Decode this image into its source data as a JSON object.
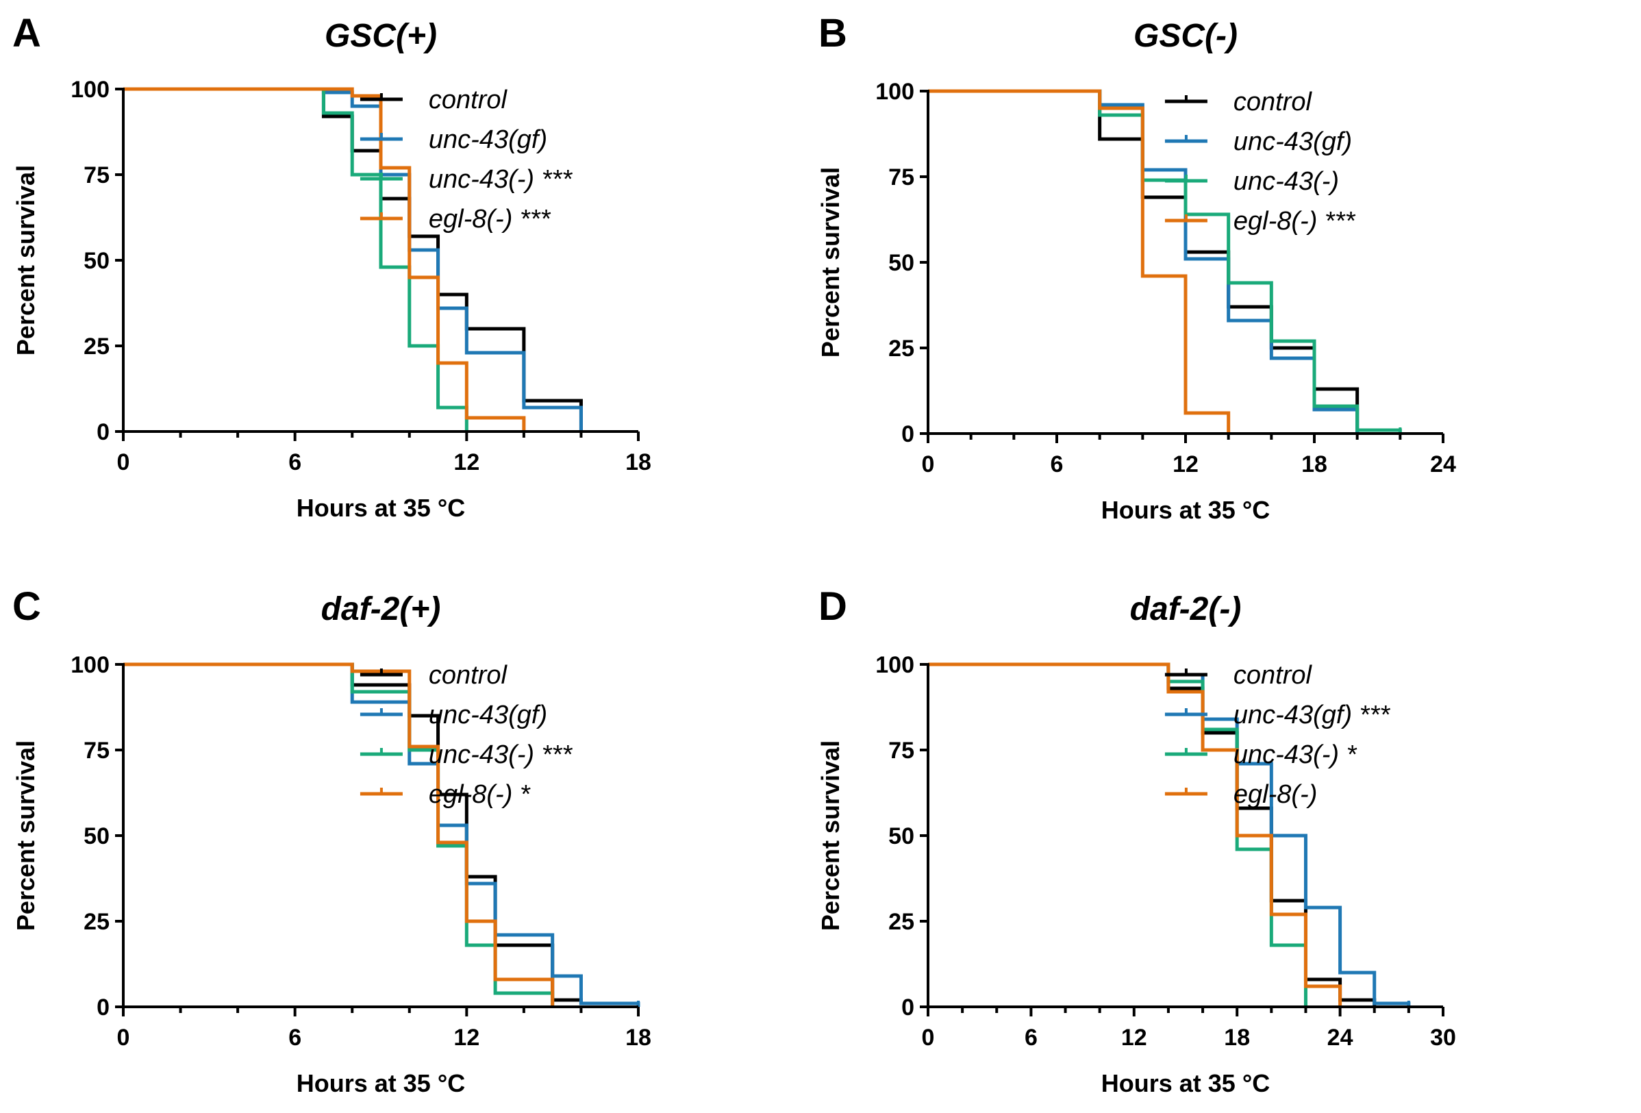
{
  "colors": {
    "control": "#000000",
    "unc-43(gf)": "#1f78b4",
    "unc-43(-)": "#1aaa7a",
    "egl-8(-)": "#e0700e"
  },
  "chart_data": [
    {
      "panel": "A",
      "title": "GSC(+)",
      "type": "line",
      "xlabel": "Hours at 35 °C",
      "ylabel": "Percent survival",
      "xlim": [
        0,
        18
      ],
      "ylim": [
        0,
        100
      ],
      "xticks": [
        0,
        6,
        12,
        18
      ],
      "yticks": [
        0,
        25,
        50,
        75,
        100
      ],
      "legend_position": "top-right",
      "series": [
        {
          "key": "control",
          "name": "control",
          "suffix": "",
          "x": [
            0,
            7,
            8,
            9,
            10,
            11,
            12,
            14,
            16
          ],
          "y": [
            100,
            92,
            82,
            68,
            57,
            40,
            30,
            9,
            0
          ]
        },
        {
          "key": "unc-43(gf)",
          "name": "unc-43(gf)",
          "suffix": "",
          "x": [
            0,
            7,
            8,
            9,
            10,
            11,
            12,
            14,
            16
          ],
          "y": [
            100,
            99,
            95,
            75,
            53,
            36,
            23,
            7,
            0
          ]
        },
        {
          "key": "unc-43(-)",
          "name": "unc-43(-)",
          "suffix": " ***",
          "x": [
            0,
            7,
            8,
            9,
            10,
            11,
            12
          ],
          "y": [
            100,
            93,
            75,
            48,
            25,
            7,
            0
          ]
        },
        {
          "key": "egl-8(-)",
          "name": "egl-8(-)",
          "suffix": " ***",
          "x": [
            0,
            8,
            9,
            10,
            11,
            12,
            14
          ],
          "y": [
            100,
            98,
            77,
            45,
            20,
            4,
            0
          ]
        }
      ]
    },
    {
      "panel": "B",
      "title": "GSC(-)",
      "type": "line",
      "xlabel": "Hours at 35 °C",
      "ylabel": "Percent survival",
      "xlim": [
        0,
        24
      ],
      "ylim": [
        0,
        100
      ],
      "xticks": [
        0,
        6,
        12,
        18,
        24
      ],
      "yticks": [
        0,
        25,
        50,
        75,
        100
      ],
      "legend_position": "top-right",
      "series": [
        {
          "key": "control",
          "name": "control",
          "suffix": "",
          "x": [
            0,
            8,
            10,
            12,
            14,
            16,
            18,
            20
          ],
          "y": [
            100,
            86,
            69,
            53,
            37,
            25,
            13,
            0
          ]
        },
        {
          "key": "unc-43(gf)",
          "name": "unc-43(gf)",
          "suffix": "",
          "x": [
            0,
            8,
            10,
            12,
            14,
            16,
            18,
            20
          ],
          "y": [
            100,
            96,
            77,
            51,
            33,
            22,
            7,
            0
          ]
        },
        {
          "key": "unc-43(-)",
          "name": "unc-43(-)",
          "suffix": "",
          "x": [
            0,
            8,
            10,
            12,
            14,
            16,
            18,
            20,
            22
          ],
          "y": [
            100,
            93,
            74,
            64,
            44,
            27,
            8,
            1,
            0
          ]
        },
        {
          "key": "egl-8(-)",
          "name": "egl-8(-)",
          "suffix": " ***",
          "x": [
            0,
            8,
            10,
            12,
            14
          ],
          "y": [
            100,
            95,
            46,
            6,
            0
          ]
        }
      ]
    },
    {
      "panel": "C",
      "title": "daf-2(+)",
      "type": "line",
      "xlabel": "Hours at 35 °C",
      "ylabel": "Percent survival",
      "xlim": [
        0,
        18
      ],
      "ylim": [
        0,
        100
      ],
      "xticks": [
        0,
        6,
        12,
        18
      ],
      "yticks": [
        0,
        25,
        50,
        75,
        100
      ],
      "legend_position": "top-right",
      "series": [
        {
          "key": "control",
          "name": "control",
          "suffix": "",
          "x": [
            0,
            8,
            10,
            11,
            12,
            13,
            15,
            16,
            18
          ],
          "y": [
            100,
            94,
            85,
            62,
            38,
            18,
            2,
            1,
            0
          ]
        },
        {
          "key": "unc-43(gf)",
          "name": "unc-43(gf)",
          "suffix": "",
          "x": [
            0,
            8,
            10,
            11,
            12,
            13,
            15,
            16,
            18
          ],
          "y": [
            100,
            89,
            71,
            53,
            36,
            21,
            9,
            1,
            0
          ]
        },
        {
          "key": "unc-43(-)",
          "name": "unc-43(-)",
          "suffix": " ***",
          "x": [
            0,
            8,
            10,
            11,
            12,
            13,
            15
          ],
          "y": [
            100,
            92,
            75,
            47,
            18,
            4,
            0
          ]
        },
        {
          "key": "egl-8(-)",
          "name": "egl-8(-)",
          "suffix": " *",
          "x": [
            0,
            8,
            10,
            11,
            12,
            13,
            15
          ],
          "y": [
            100,
            98,
            76,
            48,
            25,
            8,
            0
          ]
        }
      ]
    },
    {
      "panel": "D",
      "title": "daf-2(-)",
      "type": "line",
      "xlabel": "Hours at 35 °C",
      "ylabel": "Percent survival",
      "xlim": [
        0,
        30
      ],
      "ylim": [
        0,
        100
      ],
      "xticks": [
        0,
        6,
        12,
        18,
        24,
        30
      ],
      "yticks": [
        0,
        25,
        50,
        75,
        100
      ],
      "legend_position": "top-right",
      "series": [
        {
          "key": "control",
          "name": "control",
          "suffix": "",
          "x": [
            0,
            14,
            16,
            18,
            20,
            22,
            24,
            26
          ],
          "y": [
            100,
            93,
            80,
            58,
            31,
            8,
            2,
            0
          ]
        },
        {
          "key": "unc-43(gf)",
          "name": "unc-43(gf)",
          "suffix": " ***",
          "x": [
            0,
            14,
            16,
            18,
            20,
            22,
            24,
            26,
            28
          ],
          "y": [
            100,
            97,
            84,
            71,
            50,
            29,
            10,
            1,
            0
          ]
        },
        {
          "key": "unc-43(-)",
          "name": "unc-43(-)",
          "suffix": " *",
          "x": [
            0,
            14,
            16,
            18,
            20,
            22
          ],
          "y": [
            100,
            95,
            81,
            46,
            18,
            0
          ]
        },
        {
          "key": "egl-8(-)",
          "name": "egl-8(-)",
          "suffix": "",
          "x": [
            0,
            14,
            16,
            18,
            20,
            22,
            24
          ],
          "y": [
            100,
            92,
            75,
            50,
            27,
            6,
            0
          ]
        }
      ]
    }
  ]
}
